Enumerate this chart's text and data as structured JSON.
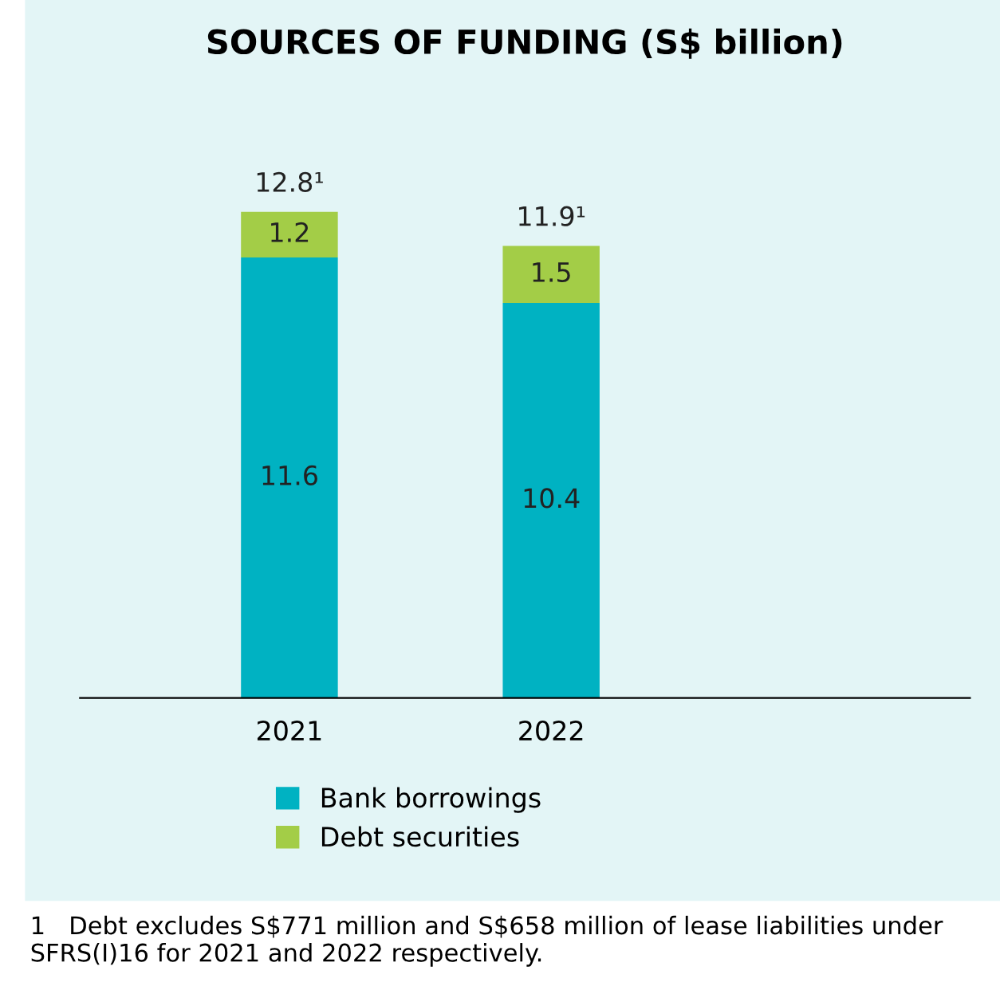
{
  "chart_data": {
    "type": "bar",
    "title": "SOURCES OF FUNDING (S$ billion)",
    "categories": [
      "2021",
      "2022"
    ],
    "stacked": true,
    "data_labels": true,
    "series": [
      {
        "name": "Bank borrowings",
        "color": "#00b2c2",
        "values": [
          11.6,
          10.4
        ]
      },
      {
        "name": "Debt securities",
        "color": "#a3cd47",
        "values": [
          1.2,
          1.5
        ]
      }
    ],
    "totals": [
      "12.8¹",
      "11.9¹"
    ],
    "legend": "bottom",
    "grid": false,
    "annotations": [
      "1   Debt excludes S$771 million and S$658 million of lease liabilities under SFRS(I)16 for 2021 and 2022 respectively."
    ]
  }
}
